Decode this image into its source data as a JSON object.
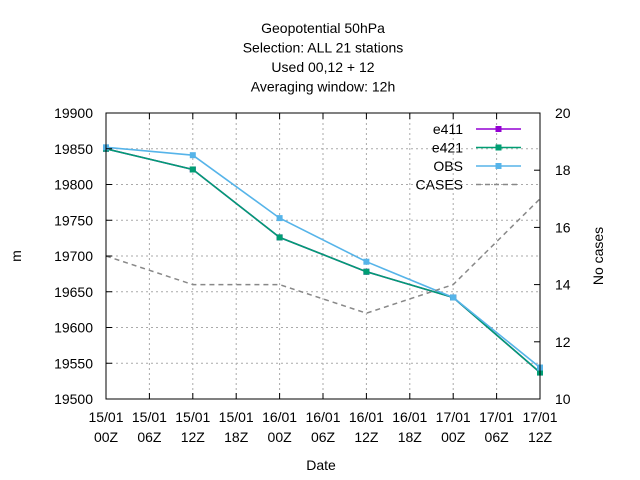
{
  "chart_data": {
    "type": "line",
    "title_lines": [
      "Geopotential 50hPa",
      "Selection: ALL      21 stations",
      "Used  00,12  + 12",
      "Averaging window: 12h"
    ],
    "xlabel": "Date",
    "ylabel": "m",
    "y2label": "No cases",
    "x_ticks": [
      {
        "top": "15/01",
        "bottom": "00Z"
      },
      {
        "top": "15/01",
        "bottom": "06Z"
      },
      {
        "top": "15/01",
        "bottom": "12Z"
      },
      {
        "top": "15/01",
        "bottom": "18Z"
      },
      {
        "top": "16/01",
        "bottom": "00Z"
      },
      {
        "top": "16/01",
        "bottom": "06Z"
      },
      {
        "top": "16/01",
        "bottom": "12Z"
      },
      {
        "top": "16/01",
        "bottom": "18Z"
      },
      {
        "top": "17/01",
        "bottom": "00Z"
      },
      {
        "top": "17/01",
        "bottom": "06Z"
      },
      {
        "top": "17/01",
        "bottom": "12Z"
      }
    ],
    "x_range_hours": [
      0,
      60
    ],
    "ylim": [
      19500,
      19900
    ],
    "yticks": [
      19500,
      19550,
      19600,
      19650,
      19700,
      19750,
      19800,
      19850,
      19900
    ],
    "y2lim": [
      10,
      20
    ],
    "y2ticks": [
      10,
      12,
      14,
      16,
      18,
      20
    ],
    "grid": true,
    "legend_position": "top-right",
    "series": [
      {
        "name": "e411",
        "color": "#9400d3",
        "axis": "y",
        "style": "solid",
        "marker": "square",
        "x_hours": [
          0,
          12,
          24,
          36,
          48,
          60
        ],
        "values": [
          19850,
          19821,
          19726,
          19678,
          19642,
          19537
        ]
      },
      {
        "name": "e421",
        "color": "#009e73",
        "axis": "y",
        "style": "solid",
        "marker": "square",
        "x_hours": [
          0,
          12,
          24,
          36,
          48,
          60
        ],
        "values": [
          19850,
          19821,
          19726,
          19678,
          19642,
          19537
        ]
      },
      {
        "name": "OBS",
        "color": "#56b4e9",
        "axis": "y",
        "style": "solid",
        "marker": "square",
        "x_hours": [
          0,
          12,
          24,
          36,
          48,
          60
        ],
        "values": [
          19852,
          19841,
          19753,
          19692,
          19642,
          19544
        ]
      },
      {
        "name": "CASES",
        "color": "#888888",
        "axis": "y2",
        "style": "dashed",
        "marker": "none",
        "x_hours": [
          0,
          12,
          24,
          36,
          48,
          60
        ],
        "values": [
          15,
          14,
          14,
          13,
          14,
          17
        ]
      }
    ]
  }
}
